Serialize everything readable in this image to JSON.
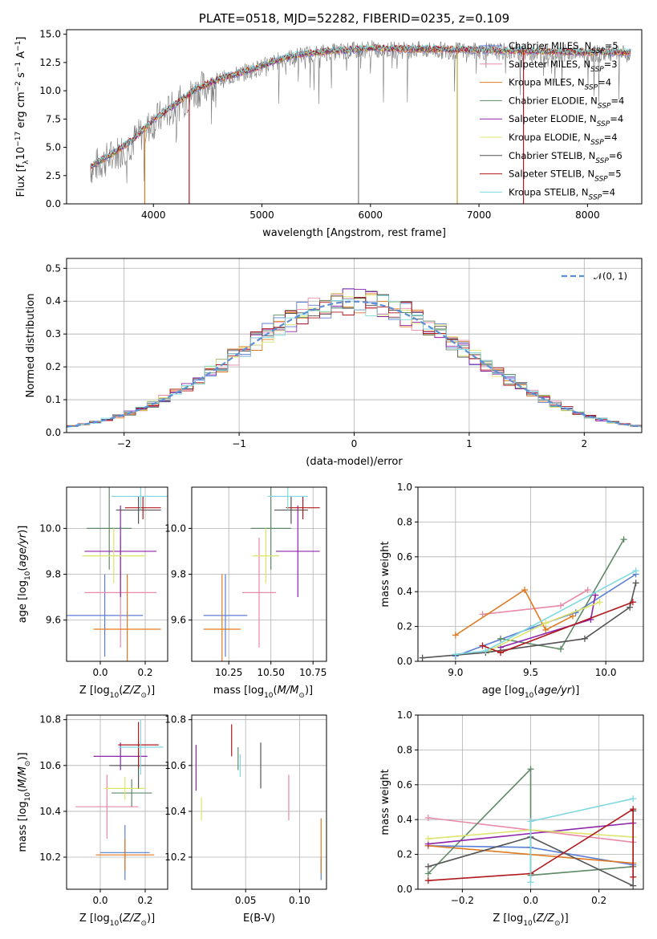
{
  "chart_data": [
    {
      "id": "spectrum",
      "type": "line",
      "title": "PLATE=0518, MJD=52282, FIBERID=0235, z=0.109",
      "xlabel": "wavelength [Angstrom, rest frame]",
      "ylabel": "Flux [f_λ 10^-17 erg cm^-2 s^-1 A^-1]",
      "xlim": [
        3200,
        8500
      ],
      "ylim": [
        0,
        15.4
      ],
      "xticks": [
        4000,
        5000,
        6000,
        7000,
        8000
      ],
      "yticks": [
        0.0,
        2.5,
        5.0,
        7.5,
        10.0,
        12.5,
        15.0
      ],
      "grid": false,
      "legend_position": "right",
      "series": [
        {
          "name": "Chabrier MILES",
          "nssp": "5",
          "color": "#5b7fd6"
        },
        {
          "name": "Salpeter MILES",
          "nssp": "3",
          "color": "#e88aa8"
        },
        {
          "name": "Kroupa MILES",
          "nssp": "4",
          "color": "#e07a20"
        },
        {
          "name": "Chabrier ELODIE",
          "nssp": "4",
          "color": "#5f8a68"
        },
        {
          "name": "Salpeter ELODIE",
          "nssp": "4",
          "color": "#8e24aa"
        },
        {
          "name": "Kroupa ELODIE",
          "nssp": "4",
          "color": "#dde46a"
        },
        {
          "name": "Chabrier STELIB",
          "nssp": "6",
          "color": "#555555"
        },
        {
          "name": "Salpeter STELIB",
          "nssp": "5",
          "color": "#b0181c"
        },
        {
          "name": "Kroupa STELIB",
          "nssp": "4",
          "color": "#7fd8e0"
        }
      ],
      "model_curve": {
        "x": [
          3400,
          3600,
          3800,
          4000,
          4200,
          4400,
          4600,
          4800,
          5000,
          5200,
          5400,
          5600,
          5800,
          6000,
          6200,
          6500,
          7000,
          7500,
          8000,
          8400
        ],
        "y": [
          3.2,
          4.3,
          5.6,
          7.4,
          8.8,
          10.2,
          11.0,
          11.6,
          12.2,
          12.9,
          13.3,
          13.5,
          13.6,
          13.8,
          13.7,
          13.7,
          13.6,
          13.5,
          13.4,
          13.4
        ]
      },
      "observed_curve": {
        "x": [
          3400,
          3600,
          3800,
          4000,
          4200,
          4400,
          4600,
          4800,
          5000,
          5200,
          5400,
          5600,
          5800,
          6000,
          6200,
          6500,
          7000,
          7500,
          8000,
          8400
        ],
        "y": [
          3.0,
          4.1,
          5.4,
          7.2,
          8.6,
          10.0,
          10.9,
          11.5,
          12.1,
          12.8,
          13.2,
          13.4,
          13.5,
          13.7,
          13.6,
          13.6,
          13.5,
          13.4,
          13.3,
          13.2
        ]
      },
      "spikes_x": [
        3920,
        4330,
        5890,
        6800,
        7410
      ]
    },
    {
      "id": "residual-hist",
      "type": "line",
      "xlabel": "(data-model)/error",
      "ylabel": "Normed distribution",
      "xlim": [
        -2.5,
        2.5
      ],
      "ylim": [
        0,
        0.53
      ],
      "xticks": [
        -2,
        -1,
        0,
        1,
        2
      ],
      "yticks": [
        0.0,
        0.1,
        0.2,
        0.3,
        0.4,
        0.5
      ],
      "grid": true,
      "legend": [
        "𝒩(0, 1)"
      ],
      "legend_position": "top-right",
      "gaussian_color": "#5b8fd6",
      "bin_width": 0.1
    },
    {
      "id": "age-vs-Z",
      "type": "scatter",
      "xlabel": "Z [log10(Z/Z⊙)]",
      "ylabel": "age  [log10(age/yr)]",
      "xlim": [
        -0.15,
        0.3
      ],
      "ylim": [
        9.42,
        10.18
      ],
      "xticks": [
        0.0,
        0.2
      ],
      "yticks": [
        9.6,
        9.8,
        10.0
      ],
      "grid": true,
      "points": [
        {
          "series": "Chabrier MILES",
          "x": 0.02,
          "y": 9.62,
          "xerr": 0.17,
          "yerr": 0.18
        },
        {
          "series": "Salpeter MILES",
          "x": 0.09,
          "y": 9.72,
          "xerr": 0.16,
          "yerr": 0.24
        },
        {
          "series": "Kroupa MILES",
          "x": 0.12,
          "y": 9.56,
          "xerr": 0.15,
          "yerr": 0.24
        },
        {
          "series": "Chabrier ELODIE",
          "x": 0.04,
          "y": 10.0,
          "xerr": 0.1,
          "yerr": 0.18
        },
        {
          "series": "Salpeter ELODIE",
          "x": 0.09,
          "y": 9.9,
          "xerr": 0.16,
          "yerr": 0.2
        },
        {
          "series": "Kroupa ELODIE",
          "x": 0.06,
          "y": 9.88,
          "xerr": 0.14,
          "yerr": 0.12
        },
        {
          "series": "Chabrier STELIB",
          "x": 0.17,
          "y": 10.08,
          "xerr": 0.1,
          "yerr": 0.06
        },
        {
          "series": "Salpeter STELIB",
          "x": 0.19,
          "y": 10.09,
          "xerr": 0.08,
          "yerr": 0.05
        },
        {
          "series": "Kroupa STELIB",
          "x": 0.18,
          "y": 10.14,
          "xerr": 0.13,
          "yerr": 0.06
        }
      ]
    },
    {
      "id": "age-vs-mass",
      "type": "scatter",
      "xlabel": "mass [log10(M/M⊙)]",
      "ylabel": "",
      "xlim": [
        10.03,
        10.83
      ],
      "ylim": [
        9.42,
        10.18
      ],
      "xticks": [
        10.25,
        10.5,
        10.75
      ],
      "yticks": [
        9.6,
        9.8,
        10.0
      ],
      "grid": true,
      "points": [
        {
          "series": "Chabrier MILES",
          "x": 10.23,
          "y": 9.62,
          "xerr": 0.13,
          "yerr": 0.18
        },
        {
          "series": "Salpeter MILES",
          "x": 10.43,
          "y": 9.72,
          "xerr": 0.1,
          "yerr": 0.24
        },
        {
          "series": "Kroupa MILES",
          "x": 10.21,
          "y": 9.56,
          "xerr": 0.11,
          "yerr": 0.24
        },
        {
          "series": "Chabrier ELODIE",
          "x": 10.5,
          "y": 10.0,
          "xerr": 0.12,
          "yerr": 0.18
        },
        {
          "series": "Salpeter ELODIE",
          "x": 10.66,
          "y": 9.9,
          "xerr": 0.13,
          "yerr": 0.2
        },
        {
          "series": "Kroupa ELODIE",
          "x": 10.47,
          "y": 9.88,
          "xerr": 0.08,
          "yerr": 0.12
        },
        {
          "series": "Chabrier STELIB",
          "x": 10.62,
          "y": 10.08,
          "xerr": 0.1,
          "yerr": 0.06
        },
        {
          "series": "Salpeter STELIB",
          "x": 10.69,
          "y": 10.09,
          "xerr": 0.1,
          "yerr": 0.05
        },
        {
          "series": "Kroupa STELIB",
          "x": 10.6,
          "y": 10.14,
          "xerr": 0.12,
          "yerr": 0.06
        }
      ]
    },
    {
      "id": "weight-vs-age",
      "type": "line",
      "xlabel": "age  [log10(age/yr)]",
      "ylabel": "mass weight",
      "xlim": [
        8.75,
        10.25
      ],
      "ylim": [
        0,
        1.0
      ],
      "xticks": [
        9.0,
        9.5,
        10.0
      ],
      "yticks": [
        0.0,
        0.2,
        0.4,
        0.6,
        0.8,
        1.0
      ],
      "grid": true,
      "series": [
        {
          "name": "Chabrier MILES",
          "x": [
            9.0,
            9.5,
            9.8,
            10.2
          ],
          "y": [
            0.03,
            0.19,
            0.28,
            0.5
          ]
        },
        {
          "name": "Salpeter MILES",
          "x": [
            9.18,
            9.7,
            9.88
          ],
          "y": [
            0.27,
            0.32,
            0.41
          ]
        },
        {
          "name": "Kroupa MILES",
          "x": [
            9.0,
            9.46,
            9.6,
            9.78
          ],
          "y": [
            0.15,
            0.41,
            0.18,
            0.26
          ]
        },
        {
          "name": "Chabrier ELODIE",
          "x": [
            9.3,
            9.7,
            10.12
          ],
          "y": [
            0.13,
            0.07,
            0.7
          ]
        },
        {
          "name": "Salpeter ELODIE",
          "x": [
            9.3,
            9.9,
            9.93
          ],
          "y": [
            0.08,
            0.24,
            0.38
          ]
        },
        {
          "name": "Kroupa ELODIE",
          "x": [
            9.22,
            9.6,
            9.96
          ],
          "y": [
            0.06,
            0.22,
            0.34
          ]
        },
        {
          "name": "Chabrier STELIB",
          "x": [
            8.78,
            9.2,
            9.86,
            10.16,
            10.2
          ],
          "y": [
            0.02,
            0.05,
            0.13,
            0.31,
            0.45
          ]
        },
        {
          "name": "Salpeter STELIB",
          "x": [
            9.18,
            9.3,
            10.18
          ],
          "y": [
            0.09,
            0.05,
            0.34
          ]
        },
        {
          "name": "Kroupa STELIB",
          "x": [
            9.0,
            9.2,
            10.2
          ],
          "y": [
            0.04,
            0.06,
            0.52
          ]
        }
      ]
    },
    {
      "id": "mass-vs-Z",
      "type": "scatter",
      "xlabel": "Z [log10(Z/Z⊙)]",
      "ylabel": "mass [log10(M/M⊙)]",
      "xlim": [
        -0.15,
        0.3
      ],
      "ylim": [
        10.06,
        10.82
      ],
      "xticks": [
        0.0,
        0.2
      ],
      "yticks": [
        10.2,
        10.4,
        10.6,
        10.8
      ],
      "grid": true,
      "points": [
        {
          "series": "Chabrier MILES",
          "x": 0.11,
          "y": 10.22,
          "xerr": 0.11,
          "yerr": 0.12
        },
        {
          "series": "Salpeter MILES",
          "x": 0.03,
          "y": 10.42,
          "xerr": 0.14,
          "yerr": 0.14
        },
        {
          "series": "Kroupa MILES",
          "x": 0.11,
          "y": 10.21,
          "xerr": 0.13,
          "yerr": 0.07
        },
        {
          "series": "Chabrier ELODIE",
          "x": 0.14,
          "y": 10.48,
          "xerr": 0.09,
          "yerr": 0.06
        },
        {
          "series": "Salpeter ELODIE",
          "x": 0.09,
          "y": 10.64,
          "xerr": 0.12,
          "yerr": 0.06
        },
        {
          "series": "Kroupa ELODIE",
          "x": 0.11,
          "y": 10.5,
          "xerr": 0.09,
          "yerr": 0.05
        },
        {
          "series": "Chabrier STELIB",
          "x": 0.17,
          "y": 10.6,
          "xerr": 0.13,
          "yerr": 0.1
        },
        {
          "series": "Salpeter STELIB",
          "x": 0.17,
          "y": 10.69,
          "xerr": 0.09,
          "yerr": 0.1
        },
        {
          "series": "Kroupa STELIB",
          "x": 0.18,
          "y": 10.68,
          "xerr": 0.1,
          "yerr": 0.12
        }
      ]
    },
    {
      "id": "mass-vs-ebv",
      "type": "scatter",
      "xlabel": "E(B-V)",
      "ylabel": "",
      "xlim": [
        0.0,
        0.125
      ],
      "ylim": [
        10.06,
        10.82
      ],
      "xticks": [
        0.05,
        0.1
      ],
      "yticks": [
        10.2,
        10.4,
        10.6,
        10.8
      ],
      "grid": true,
      "points": [
        {
          "series": "Chabrier MILES",
          "x": 0.12,
          "y": 10.15,
          "yerr": 0.05
        },
        {
          "series": "Salpeter MILES",
          "x": 0.09,
          "y": 10.46,
          "yerr": 0.1
        },
        {
          "series": "Kroupa MILES",
          "x": 0.12,
          "y": 10.25,
          "yerr": 0.12
        },
        {
          "series": "Chabrier ELODIE",
          "x": 0.043,
          "y": 10.63,
          "yerr": 0.05
        },
        {
          "series": "Salpeter ELODIE",
          "x": 0.004,
          "y": 10.59,
          "yerr": 0.1
        },
        {
          "series": "Kroupa ELODIE",
          "x": 0.009,
          "y": 10.41,
          "yerr": 0.05
        },
        {
          "series": "Chabrier STELIB",
          "x": 0.064,
          "y": 10.6,
          "yerr": 0.1
        },
        {
          "series": "Salpeter STELIB",
          "x": 0.037,
          "y": 10.71,
          "yerr": 0.07
        },
        {
          "series": "Kroupa STELIB",
          "x": 0.045,
          "y": 10.6,
          "yerr": 0.05
        }
      ]
    },
    {
      "id": "weight-vs-Z",
      "type": "line",
      "xlabel": "Z [log10(Z/Z⊙)]",
      "ylabel": "mass weight",
      "xlim": [
        -0.33,
        0.33
      ],
      "ylim": [
        0,
        1.0
      ],
      "xticks": [
        -0.2,
        0.0,
        0.2
      ],
      "yticks": [
        0.0,
        0.2,
        0.4,
        0.6,
        0.8,
        1.0
      ],
      "grid": true,
      "series": [
        {
          "name": "Chabrier MILES",
          "x": [
            -0.3,
            0.0,
            0.3
          ],
          "y": [
            0.25,
            0.24,
            0.14
          ]
        },
        {
          "name": "Salpeter MILES",
          "x": [
            -0.3,
            0.3
          ],
          "y": [
            0.41,
            0.27
          ]
        },
        {
          "name": "Kroupa MILES",
          "x": [
            -0.3,
            0.3
          ],
          "y": [
            0.25,
            0.15
          ]
        },
        {
          "name": "Chabrier ELODIE",
          "x": [
            -0.3,
            0.0,
            0.0,
            0.3
          ],
          "y": [
            0.09,
            0.69,
            0.08,
            0.13
          ]
        },
        {
          "name": "Salpeter ELODIE",
          "x": [
            -0.3,
            0.3
          ],
          "y": [
            0.26,
            0.38
          ]
        },
        {
          "name": "Kroupa ELODIE",
          "x": [
            -0.3,
            0.0,
            0.3
          ],
          "y": [
            0.29,
            0.34,
            0.3
          ]
        },
        {
          "name": "Chabrier STELIB",
          "x": [
            -0.3,
            0.0,
            0.3,
            0.3
          ],
          "y": [
            0.13,
            0.3,
            0.02,
            0.45
          ]
        },
        {
          "name": "Salpeter STELIB",
          "x": [
            -0.3,
            0.0,
            0.3,
            0.3
          ],
          "y": [
            0.05,
            0.09,
            0.46,
            0.07
          ]
        },
        {
          "name": "Kroupa STELIB",
          "x": [
            0.0,
            0.0,
            0.3
          ],
          "y": [
            0.04,
            0.39,
            0.52
          ]
        }
      ]
    }
  ]
}
